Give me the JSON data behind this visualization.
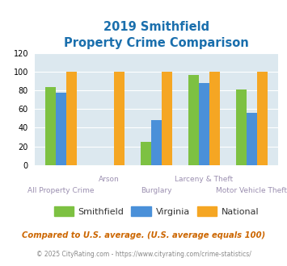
{
  "title_line1": "2019 Smithfield",
  "title_line2": "Property Crime Comparison",
  "group_labels_top": [
    "",
    "Arson",
    "",
    "Larceny & Theft",
    ""
  ],
  "group_labels_bottom": [
    "All Property Crime",
    "",
    "Burglary",
    "",
    "Motor Vehicle Theft"
  ],
  "smithfield": [
    84,
    0,
    25,
    97,
    81
  ],
  "virginia": [
    78,
    0,
    48,
    88,
    56
  ],
  "national": [
    100,
    100,
    100,
    100,
    100
  ],
  "smithfield_color": "#7dc142",
  "virginia_color": "#4a90d9",
  "national_color": "#f5a623",
  "ylim": [
    0,
    120
  ],
  "yticks": [
    0,
    20,
    40,
    60,
    80,
    100,
    120
  ],
  "plot_bg": "#dce8ef",
  "fig_bg": "#ffffff",
  "title_color": "#1a6fad",
  "xlabel_color": "#9b8fb0",
  "legend_labels": [
    "Smithfield",
    "Virginia",
    "National"
  ],
  "footnote1": "Compared to U.S. average. (U.S. average equals 100)",
  "footnote2": "© 2025 CityRating.com - https://www.cityrating.com/crime-statistics/",
  "footnote1_color": "#cc6600",
  "footnote2_color": "#888888",
  "legend_text_color": "#333333"
}
